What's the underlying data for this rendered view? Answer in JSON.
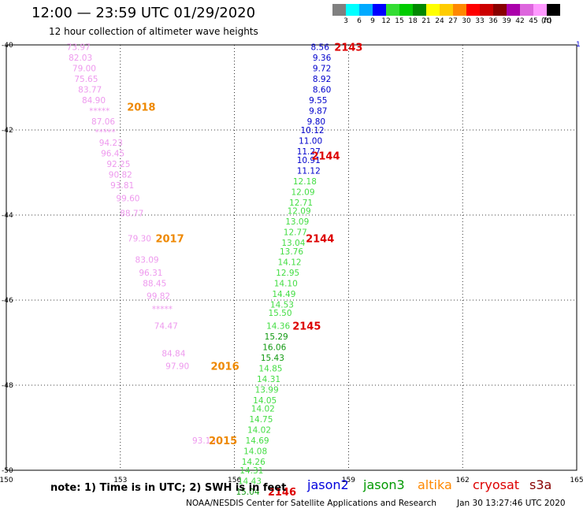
{
  "header": {
    "title": "12:00 — 23:59 UTC 01/29/2020",
    "subtitle": "12 hour collection of altimeter wave heights"
  },
  "colorbar": {
    "unit": "(ft)",
    "bins": [
      {
        "label": "3",
        "color": "#808080"
      },
      {
        "label": "6",
        "color": "#00ffff"
      },
      {
        "label": "9",
        "color": "#00aaff"
      },
      {
        "label": "12",
        "color": "#0000ff"
      },
      {
        "label": "15",
        "color": "#33dd33"
      },
      {
        "label": "18",
        "color": "#00cc00"
      },
      {
        "label": "21",
        "color": "#008800"
      },
      {
        "label": "24",
        "color": "#ffff00"
      },
      {
        "label": "27",
        "color": "#ffcc00"
      },
      {
        "label": "30",
        "color": "#ff8800"
      },
      {
        "label": "33",
        "color": "#ff0000"
      },
      {
        "label": "36",
        "color": "#cc0000"
      },
      {
        "label": "39",
        "color": "#880000"
      },
      {
        "label": "42",
        "color": "#aa00aa"
      },
      {
        "label": "45",
        "color": "#dd66dd"
      },
      {
        "label": "70",
        "color": "#ff99ff"
      },
      {
        "label": "",
        "color": "#000000"
      }
    ]
  },
  "map": {
    "lon_min": 150,
    "lon_max": 165,
    "lat_min": -50,
    "lat_max": -40,
    "lon_ticks": [
      {
        "value": 150,
        "label": "150"
      },
      {
        "value": 153,
        "label": "153"
      },
      {
        "value": 156,
        "label": "156"
      },
      {
        "value": 159,
        "label": "159"
      },
      {
        "value": 162,
        "label": "162"
      },
      {
        "value": 165,
        "label": "165"
      }
    ],
    "lat_ticks": [
      {
        "value": -40,
        "label": "-40"
      },
      {
        "value": -42,
        "label": "-42"
      },
      {
        "value": -44,
        "label": "-44"
      },
      {
        "value": -46,
        "label": "-46"
      },
      {
        "value": -48,
        "label": "-48"
      },
      {
        "value": -50,
        "label": "-50"
      }
    ],
    "corner_right_label": "1",
    "tracks": [
      {
        "color": "#ee99ee",
        "readings": [
          {
            "lon": 151.9,
            "lat": -40.05,
            "value": "73.97"
          },
          {
            "lon": 151.95,
            "lat": -40.3,
            "value": "82.03"
          },
          {
            "lon": 152.05,
            "lat": -40.55,
            "value": "79.00"
          },
          {
            "lon": 152.1,
            "lat": -40.8,
            "value": "75.65"
          },
          {
            "lon": 152.2,
            "lat": -41.05,
            "value": "83.77"
          },
          {
            "lon": 152.3,
            "lat": -41.3,
            "value": "84.90"
          },
          {
            "lon": 152.45,
            "lat": -41.55,
            "value": "*****"
          },
          {
            "lon": 152.55,
            "lat": -41.8,
            "value": "87.06"
          },
          {
            "lon": 152.6,
            "lat": -42.05,
            "value": "*****"
          },
          {
            "lon": 152.75,
            "lat": -42.3,
            "value": "94.23"
          },
          {
            "lon": 152.8,
            "lat": -42.55,
            "value": "96.45"
          },
          {
            "lon": 152.95,
            "lat": -42.8,
            "value": "92.25"
          },
          {
            "lon": 153.0,
            "lat": -43.05,
            "value": "90.82"
          },
          {
            "lon": 153.05,
            "lat": -43.3,
            "value": "93.81"
          },
          {
            "lon": 153.2,
            "lat": -43.6,
            "value": "99.60"
          },
          {
            "lon": 153.3,
            "lat": -43.95,
            "value": "88.77"
          }
        ],
        "name_label": {
          "lon": 153.55,
          "lat": -41.45,
          "text": "2018",
          "color": "#ee8800"
        }
      },
      {
        "color": "#ee99ee",
        "readings": [
          {
            "lon": 153.5,
            "lat": -44.55,
            "value": "79.30"
          },
          {
            "lon": 153.7,
            "lat": -45.05,
            "value": "83.09"
          },
          {
            "lon": 153.8,
            "lat": -45.35,
            "value": "96.31"
          },
          {
            "lon": 153.9,
            "lat": -45.6,
            "value": "88.45"
          },
          {
            "lon": 154.0,
            "lat": -45.9,
            "value": "99.82"
          },
          {
            "lon": 154.1,
            "lat": -46.2,
            "value": "*****"
          },
          {
            "lon": 154.2,
            "lat": -46.6,
            "value": "74.47"
          },
          {
            "lon": 154.4,
            "lat": -47.25,
            "value": "84.84"
          },
          {
            "lon": 154.5,
            "lat": -47.55,
            "value": "97.90"
          }
        ],
        "name_label": {
          "lon": 154.3,
          "lat": -44.55,
          "text": "2017",
          "color": "#ee8800"
        }
      },
      {
        "color": "#ee99ee",
        "readings": [
          {
            "lon": 155.2,
            "lat": -49.3,
            "value": "93.13"
          }
        ],
        "name_label": {
          "lon": 155.7,
          "lat": -49.3,
          "text": "2015",
          "color": "#ee8800"
        }
      },
      {
        "color": "#ee8800",
        "readings": [],
        "name_label": {
          "lon": 155.75,
          "lat": -47.55,
          "text": "2016",
          "color": "#ee8800"
        }
      },
      {
        "color": "#0000cc",
        "readings": [
          {
            "lon": 158.25,
            "lat": -40.05,
            "value": "8.56"
          },
          {
            "lon": 158.3,
            "lat": -40.3,
            "value": "9.36"
          },
          {
            "lon": 158.3,
            "lat": -40.55,
            "value": "9.72"
          },
          {
            "lon": 158.3,
            "lat": -40.8,
            "value": "8.92"
          },
          {
            "lon": 158.3,
            "lat": -41.05,
            "value": "8.60"
          },
          {
            "lon": 158.2,
            "lat": -41.3,
            "value": "9.55"
          },
          {
            "lon": 158.2,
            "lat": -41.55,
            "value": "9.87"
          },
          {
            "lon": 158.15,
            "lat": -41.8,
            "value": "9.80"
          },
          {
            "lon": 158.05,
            "lat": -42.0,
            "value": "10.12"
          },
          {
            "lon": 158.0,
            "lat": -42.25,
            "value": "11.00"
          },
          {
            "lon": 157.95,
            "lat": -42.5,
            "value": "11.27"
          },
          {
            "lon": 157.95,
            "lat": -42.7,
            "value": "10.91"
          },
          {
            "lon": 157.95,
            "lat": -42.95,
            "value": "11.12"
          }
        ],
        "name_label": {
          "lon": 159.0,
          "lat": -40.05,
          "text": "2143",
          "color": "#dd0000"
        }
      },
      {
        "color": "#44dd44",
        "readings": [
          {
            "lon": 157.85,
            "lat": -43.2,
            "value": "12.18"
          },
          {
            "lon": 157.8,
            "lat": -43.45,
            "value": "12.09"
          },
          {
            "lon": 157.75,
            "lat": -43.7,
            "value": "12.71"
          },
          {
            "lon": 157.7,
            "lat": -43.9,
            "value": "12.09"
          },
          {
            "lon": 157.65,
            "lat": -44.15,
            "value": "13.09"
          },
          {
            "lon": 157.6,
            "lat": -44.4,
            "value": "12.77"
          },
          {
            "lon": 157.55,
            "lat": -44.65,
            "value": "13.04"
          },
          {
            "lon": 157.5,
            "lat": -44.85,
            "value": "13.76"
          },
          {
            "lon": 157.45,
            "lat": -45.1,
            "value": "14.12"
          },
          {
            "lon": 157.4,
            "lat": -45.35,
            "value": "12.95"
          },
          {
            "lon": 157.35,
            "lat": -45.6,
            "value": "14.10"
          },
          {
            "lon": 157.3,
            "lat": -45.85,
            "value": "14.49"
          },
          {
            "lon": 157.25,
            "lat": -46.1,
            "value": "14.53"
          },
          {
            "lon": 157.2,
            "lat": -46.3,
            "value": "15.50"
          },
          {
            "lon": 157.15,
            "lat": -46.6,
            "value": "14.36"
          }
        ],
        "name_label": {
          "lon": 158.4,
          "lat": -42.6,
          "text": "2144",
          "color": "#dd0000"
        }
      },
      {
        "color": "#119911",
        "readings": [
          {
            "lon": 157.1,
            "lat": -46.85,
            "value": "15.29"
          },
          {
            "lon": 157.05,
            "lat": -47.1,
            "value": "16.06"
          },
          {
            "lon": 157.0,
            "lat": -47.35,
            "value": "15.43"
          }
        ],
        "name_label": {
          "lon": 158.25,
          "lat": -44.55,
          "text": "2144",
          "color": "#dd0000"
        }
      },
      {
        "color": "#44dd44",
        "readings": [
          {
            "lon": 156.95,
            "lat": -47.6,
            "value": "14.85"
          },
          {
            "lon": 156.9,
            "lat": -47.85,
            "value": "14.31"
          },
          {
            "lon": 156.85,
            "lat": -48.1,
            "value": "13.99"
          },
          {
            "lon": 156.8,
            "lat": -48.35,
            "value": "14.05"
          },
          {
            "lon": 156.75,
            "lat": -48.55,
            "value": "14.02"
          },
          {
            "lon": 156.7,
            "lat": -48.8,
            "value": "14.75"
          },
          {
            "lon": 156.65,
            "lat": -49.05,
            "value": "14.02"
          },
          {
            "lon": 156.6,
            "lat": -49.3,
            "value": "14.69"
          },
          {
            "lon": 156.55,
            "lat": -49.55,
            "value": "14.08"
          },
          {
            "lon": 156.5,
            "lat": -49.8,
            "value": "14.26"
          },
          {
            "lon": 156.45,
            "lat": -50.0,
            "value": "14.31"
          },
          {
            "lon": 156.4,
            "lat": -50.25,
            "value": "14.43"
          }
        ],
        "name_label": {
          "lon": 157.9,
          "lat": -46.6,
          "text": "2145",
          "color": "#dd0000"
        }
      },
      {
        "color": "#119911",
        "readings": [
          {
            "lon": 156.35,
            "lat": -50.5,
            "value": "15.04"
          }
        ],
        "name_label": {
          "lon": 157.25,
          "lat": -50.5,
          "text": "2146",
          "color": "#dd0000"
        }
      }
    ]
  },
  "footer": {
    "note": "note:  1) Time is in UTC;  2) SWH is in feet",
    "credit": "NOAA/NESDIS Center for Satellite Applications and Research",
    "timestamp": "Jan 30 13:27:46 UTC 2020",
    "satellites": [
      {
        "name": "jason2",
        "color": "#0000dd"
      },
      {
        "name": "jason3",
        "color": "#009900"
      },
      {
        "name": "altika",
        "color": "#ff8800"
      },
      {
        "name": "cryosat",
        "color": "#dd0000"
      },
      {
        "name": "s3a",
        "color": "#880000"
      }
    ]
  }
}
